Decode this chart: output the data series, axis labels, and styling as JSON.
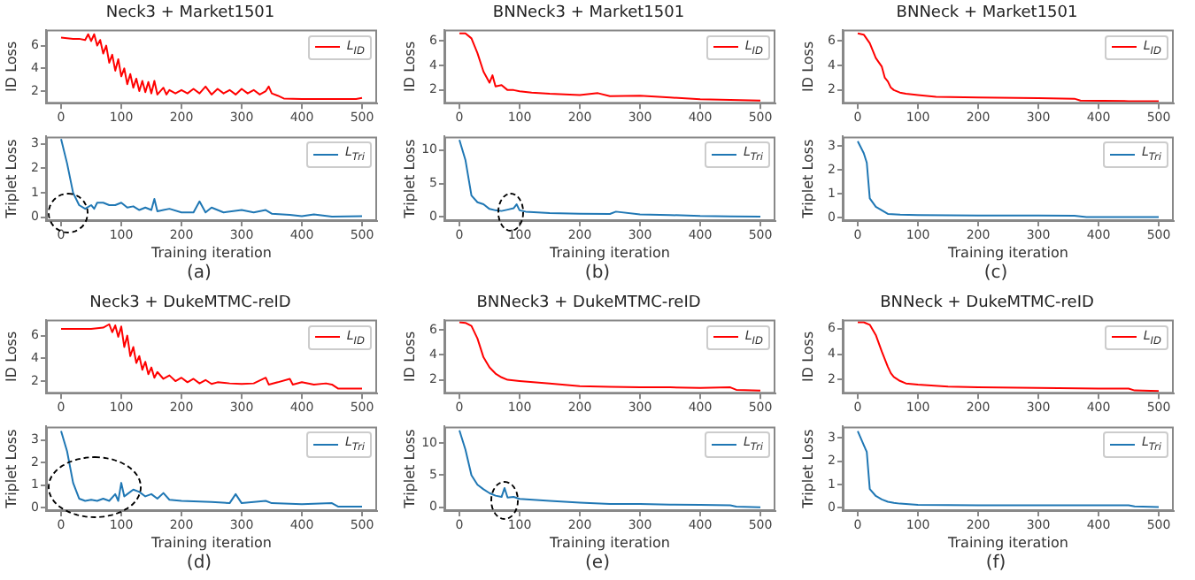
{
  "chart_data": [
    {
      "type": "line",
      "title": "Neck3 + Market1501",
      "ylabel": "ID Loss",
      "xlim": [
        -25,
        525
      ],
      "xticks": [
        0,
        100,
        200,
        300,
        400,
        500
      ],
      "ylim": [
        0.9,
        7.4
      ],
      "yticks": [
        2,
        4,
        6
      ],
      "legend": "top right",
      "series": [
        {
          "name": "L$_{ID}$",
          "color": "#ff0000",
          "x": [
            0,
            10,
            20,
            30,
            40,
            45,
            50,
            55,
            60,
            65,
            70,
            75,
            80,
            85,
            90,
            95,
            100,
            105,
            110,
            115,
            120,
            125,
            130,
            135,
            140,
            145,
            150,
            155,
            160,
            170,
            175,
            180,
            190,
            200,
            210,
            220,
            230,
            240,
            250,
            260,
            270,
            280,
            290,
            300,
            310,
            320,
            330,
            340,
            345,
            350,
            360,
            370,
            400,
            450,
            490,
            500
          ],
          "values": [
            6.7,
            6.65,
            6.6,
            6.6,
            6.5,
            7.0,
            6.4,
            7.0,
            6.0,
            6.5,
            5.3,
            6.0,
            4.5,
            5.2,
            3.8,
            4.8,
            3.3,
            4.0,
            2.6,
            3.5,
            2.3,
            3.1,
            2.0,
            2.9,
            1.9,
            2.8,
            1.8,
            2.9,
            1.7,
            2.3,
            1.7,
            2.1,
            1.8,
            2.1,
            1.8,
            2.2,
            1.8,
            2.4,
            1.7,
            2.2,
            1.8,
            2.1,
            1.7,
            2.2,
            1.8,
            2.1,
            1.7,
            2.0,
            2.4,
            1.8,
            1.6,
            1.35,
            1.3,
            1.3,
            1.3,
            1.4
          ]
        }
      ]
    },
    {
      "type": "line",
      "ylabel": "Triplet Loss",
      "xlabel": "Training iteration",
      "annotations": [
        "(a)"
      ],
      "xlim": [
        -25,
        525
      ],
      "xticks": [
        0,
        100,
        200,
        300,
        400,
        500
      ],
      "ylim": [
        -0.15,
        3.3
      ],
      "yticks": [
        0,
        1,
        2,
        3
      ],
      "legend": "top right",
      "series": [
        {
          "name": "L$_{Tri}$",
          "color": "#1f77b4",
          "x": [
            0,
            10,
            20,
            30,
            40,
            50,
            55,
            60,
            70,
            80,
            90,
            100,
            110,
            120,
            130,
            140,
            150,
            155,
            160,
            170,
            180,
            200,
            220,
            230,
            240,
            250,
            270,
            300,
            320,
            340,
            350,
            380,
            400,
            420,
            450,
            500
          ],
          "values": [
            3.2,
            2.2,
            1.0,
            0.5,
            0.35,
            0.5,
            0.35,
            0.6,
            0.6,
            0.5,
            0.5,
            0.6,
            0.4,
            0.45,
            0.3,
            0.4,
            0.3,
            0.75,
            0.25,
            0.3,
            0.35,
            0.2,
            0.2,
            0.65,
            0.2,
            0.4,
            0.2,
            0.3,
            0.2,
            0.3,
            0.15,
            0.1,
            0.05,
            0.12,
            0.03,
            0.05
          ]
        }
      ]
    },
    {
      "type": "line",
      "title": "BNNeck3 + Market1501",
      "ylabel": "ID Loss",
      "xlim": [
        -25,
        525
      ],
      "xticks": [
        0,
        100,
        200,
        300,
        400,
        500
      ],
      "ylim": [
        0.9,
        6.9
      ],
      "yticks": [
        2,
        4,
        6
      ],
      "legend": "top right",
      "series": [
        {
          "name": "L$_{ID}$",
          "color": "#ff0000",
          "x": [
            0,
            10,
            20,
            30,
            40,
            50,
            55,
            60,
            70,
            80,
            90,
            100,
            120,
            150,
            200,
            230,
            250,
            300,
            350,
            400,
            450,
            500
          ],
          "values": [
            6.6,
            6.6,
            6.2,
            5.0,
            3.5,
            2.6,
            3.2,
            2.3,
            2.4,
            2.0,
            2.0,
            1.9,
            1.8,
            1.7,
            1.6,
            1.75,
            1.5,
            1.55,
            1.4,
            1.25,
            1.2,
            1.15
          ]
        }
      ]
    },
    {
      "type": "line",
      "ylabel": "Triplet Loss",
      "xlabel": "Training iteration",
      "annotations": [
        "(b)"
      ],
      "xlim": [
        -25,
        525
      ],
      "xticks": [
        0,
        100,
        200,
        300,
        400,
        500
      ],
      "ylim": [
        -0.6,
        12
      ],
      "yticks": [
        0,
        5,
        10
      ],
      "legend": "top right",
      "series": [
        {
          "name": "L$_{Tri}$",
          "color": "#1f77b4",
          "x": [
            0,
            10,
            20,
            30,
            40,
            50,
            60,
            70,
            80,
            90,
            95,
            100,
            110,
            150,
            200,
            250,
            260,
            300,
            350,
            400,
            450,
            500
          ],
          "values": [
            11.5,
            8.5,
            3.2,
            2.2,
            1.9,
            1.2,
            1.0,
            0.9,
            1.1,
            1.3,
            1.9,
            1.0,
            0.8,
            0.6,
            0.5,
            0.45,
            0.8,
            0.4,
            0.3,
            0.15,
            0.1,
            0.05
          ]
        }
      ]
    },
    {
      "type": "line",
      "title": "BNNeck + Market1501",
      "ylabel": "ID Loss",
      "xlim": [
        -25,
        525
      ],
      "xticks": [
        0,
        100,
        200,
        300,
        400,
        500
      ],
      "ylim": [
        0.9,
        6.9
      ],
      "yticks": [
        2,
        4,
        6
      ],
      "legend": "top right",
      "series": [
        {
          "name": "L$_{ID}$",
          "color": "#ff0000",
          "x": [
            0,
            10,
            20,
            30,
            40,
            45,
            50,
            55,
            60,
            70,
            80,
            100,
            130,
            200,
            300,
            360,
            370,
            450,
            500
          ],
          "values": [
            6.6,
            6.5,
            5.8,
            4.6,
            3.9,
            3.0,
            2.7,
            2.2,
            2.0,
            1.8,
            1.7,
            1.6,
            1.45,
            1.4,
            1.35,
            1.3,
            1.15,
            1.1,
            1.1
          ]
        }
      ]
    },
    {
      "type": "line",
      "ylabel": "Triplet Loss",
      "xlabel": "Training iteration",
      "annotations": [
        "(c)"
      ],
      "xlim": [
        -25,
        525
      ],
      "xticks": [
        0,
        100,
        200,
        300,
        400,
        500
      ],
      "ylim": [
        -0.15,
        3.4
      ],
      "yticks": [
        0,
        1,
        2,
        3
      ],
      "legend": "top right",
      "series": [
        {
          "name": "L$_{Tri}$",
          "color": "#1f77b4",
          "x": [
            0,
            10,
            15,
            20,
            30,
            40,
            50,
            70,
            100,
            200,
            300,
            360,
            380,
            500
          ],
          "values": [
            3.2,
            2.7,
            2.3,
            0.8,
            0.45,
            0.3,
            0.15,
            0.12,
            0.1,
            0.08,
            0.08,
            0.07,
            0.02,
            0.02
          ]
        }
      ]
    },
    {
      "type": "line",
      "title": "Neck3 + DukeMTMC-reID",
      "ylabel": "ID Loss",
      "xlim": [
        -25,
        525
      ],
      "xticks": [
        0,
        100,
        200,
        300,
        400,
        500
      ],
      "ylim": [
        0.9,
        7.4
      ],
      "yticks": [
        2,
        4,
        6
      ],
      "legend": "top right",
      "series": [
        {
          "name": "L$_{ID}$",
          "color": "#ff0000",
          "x": [
            0,
            50,
            70,
            80,
            85,
            90,
            95,
            100,
            105,
            110,
            115,
            120,
            125,
            130,
            135,
            140,
            145,
            150,
            155,
            160,
            170,
            180,
            190,
            200,
            210,
            220,
            230,
            240,
            250,
            260,
            280,
            300,
            320,
            340,
            345,
            360,
            380,
            385,
            400,
            420,
            440,
            450,
            460,
            500
          ],
          "values": [
            6.6,
            6.6,
            6.7,
            7.0,
            6.3,
            6.9,
            5.9,
            6.8,
            5.0,
            6.0,
            4.2,
            5.0,
            3.6,
            4.2,
            3.0,
            3.7,
            2.6,
            3.2,
            2.3,
            2.8,
            2.2,
            2.5,
            2.0,
            2.3,
            1.9,
            2.2,
            1.8,
            2.1,
            1.75,
            1.9,
            1.8,
            1.75,
            1.8,
            2.3,
            1.7,
            1.9,
            2.2,
            1.7,
            1.9,
            1.7,
            1.8,
            1.7,
            1.35,
            1.35
          ]
        }
      ]
    },
    {
      "type": "line",
      "ylabel": "Triplet Loss",
      "xlabel": "Training iteration",
      "annotations": [
        "(d)"
      ],
      "xlim": [
        -25,
        525
      ],
      "xticks": [
        0,
        100,
        200,
        300,
        400,
        500
      ],
      "ylim": [
        -0.15,
        3.6
      ],
      "yticks": [
        0,
        1,
        2,
        3
      ],
      "legend": "top right",
      "series": [
        {
          "name": "L$_{Tri}$",
          "color": "#1f77b4",
          "x": [
            0,
            10,
            20,
            30,
            40,
            50,
            60,
            70,
            80,
            90,
            95,
            100,
            105,
            110,
            120,
            130,
            140,
            150,
            160,
            170,
            180,
            200,
            250,
            280,
            290,
            300,
            340,
            350,
            400,
            450,
            460,
            500
          ],
          "values": [
            3.4,
            2.5,
            1.1,
            0.4,
            0.3,
            0.35,
            0.3,
            0.4,
            0.3,
            0.6,
            0.3,
            1.1,
            0.5,
            0.6,
            0.8,
            0.7,
            0.5,
            0.6,
            0.4,
            0.65,
            0.35,
            0.3,
            0.25,
            0.2,
            0.6,
            0.2,
            0.3,
            0.2,
            0.15,
            0.2,
            0.05,
            0.05
          ]
        }
      ]
    },
    {
      "type": "line",
      "title": "BNNeck3 + DukeMTMC-reID",
      "ylabel": "ID Loss",
      "xlim": [
        -25,
        525
      ],
      "xticks": [
        0,
        100,
        200,
        300,
        400,
        500
      ],
      "ylim": [
        0.9,
        6.8
      ],
      "yticks": [
        2,
        4,
        6
      ],
      "legend": "top right",
      "series": [
        {
          "name": "L$_{ID}$",
          "color": "#ff0000",
          "x": [
            0,
            10,
            20,
            30,
            40,
            50,
            60,
            70,
            80,
            100,
            150,
            200,
            250,
            300,
            350,
            400,
            450,
            460,
            500
          ],
          "values": [
            6.6,
            6.55,
            6.3,
            5.3,
            3.8,
            3.0,
            2.5,
            2.2,
            2.0,
            1.9,
            1.7,
            1.5,
            1.45,
            1.4,
            1.4,
            1.35,
            1.4,
            1.2,
            1.15
          ]
        }
      ]
    },
    {
      "type": "line",
      "ylabel": "Triplet Loss",
      "xlabel": "Training iteration",
      "annotations": [
        "(e)"
      ],
      "xlim": [
        -25,
        525
      ],
      "xticks": [
        0,
        100,
        200,
        300,
        400,
        500
      ],
      "ylim": [
        -0.6,
        12.6
      ],
      "yticks": [
        0,
        5,
        10
      ],
      "legend": "top right",
      "series": [
        {
          "name": "L$_{Tri}$",
          "color": "#1f77b4",
          "x": [
            0,
            10,
            20,
            30,
            40,
            50,
            60,
            70,
            75,
            80,
            90,
            100,
            150,
            200,
            250,
            300,
            350,
            400,
            450,
            460,
            500
          ],
          "values": [
            12,
            9,
            5,
            3.5,
            2.8,
            2.2,
            1.8,
            1.6,
            3.0,
            1.5,
            1.6,
            1.3,
            1.0,
            0.7,
            0.5,
            0.5,
            0.4,
            0.35,
            0.3,
            0.1,
            0.0
          ]
        }
      ]
    },
    {
      "type": "line",
      "title": "BNNeck + DukeMTMC-reID",
      "ylabel": "ID Loss",
      "xlim": [
        -25,
        525
      ],
      "xticks": [
        0,
        100,
        200,
        300,
        400,
        500
      ],
      "ylim": [
        0.9,
        6.7
      ],
      "yticks": [
        2,
        4,
        6
      ],
      "legend": "top right",
      "series": [
        {
          "name": "L$_{ID}$",
          "color": "#ff0000",
          "x": [
            0,
            10,
            20,
            30,
            40,
            50,
            55,
            60,
            70,
            80,
            100,
            150,
            200,
            300,
            400,
            450,
            460,
            500
          ],
          "values": [
            6.5,
            6.5,
            6.3,
            5.5,
            4.2,
            3.0,
            2.5,
            2.2,
            1.9,
            1.7,
            1.6,
            1.45,
            1.4,
            1.35,
            1.3,
            1.3,
            1.15,
            1.1
          ]
        }
      ]
    },
    {
      "type": "line",
      "ylabel": "Triplet Loss",
      "xlabel": "Training iteration",
      "annotations": [
        "(f)"
      ],
      "xlim": [
        -25,
        525
      ],
      "xticks": [
        0,
        100,
        200,
        300,
        400,
        500
      ],
      "ylim": [
        -0.15,
        3.5
      ],
      "yticks": [
        0,
        1,
        2,
        3
      ],
      "legend": "top right",
      "series": [
        {
          "name": "L$_{Tri}$",
          "color": "#1f77b4",
          "x": [
            0,
            10,
            15,
            20,
            30,
            40,
            50,
            60,
            70,
            100,
            200,
            300,
            400,
            450,
            460,
            500
          ],
          "values": [
            3.3,
            2.7,
            2.4,
            0.8,
            0.5,
            0.35,
            0.25,
            0.2,
            0.17,
            0.12,
            0.1,
            0.1,
            0.1,
            0.1,
            0.05,
            0.02
          ]
        }
      ]
    }
  ]
}
